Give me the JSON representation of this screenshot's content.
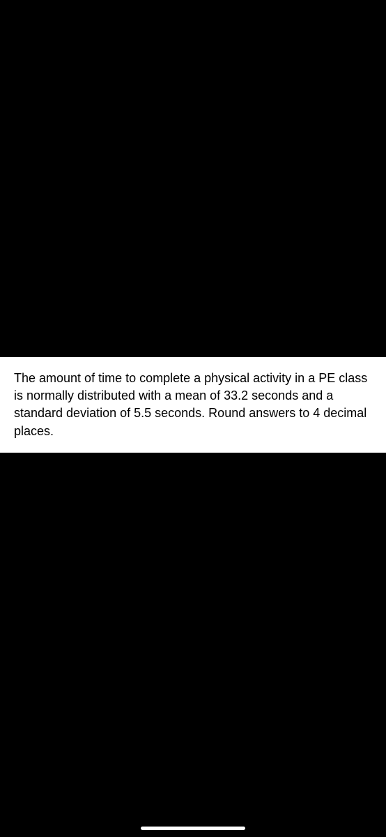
{
  "problem": {
    "text": "The amount of time to complete a physical activity in a PE class is normally distributed with a mean of 33.2 seconds and a standard deviation of 5.5 seconds. Round answers to 4 decimal places."
  },
  "colors": {
    "background": "#000000",
    "card_background": "#ffffff",
    "text": "#000000",
    "home_indicator": "#ffffff"
  }
}
